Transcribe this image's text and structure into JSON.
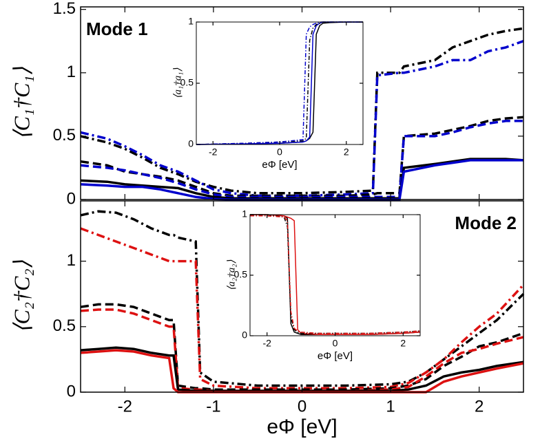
{
  "chart_data": [
    {
      "type": "line",
      "annotation": "Mode 1",
      "ylabel": "⟨C₁†C₁⟩",
      "x": [
        -2.5,
        -2.2,
        -2.0,
        -1.8,
        -1.6,
        -1.4,
        -1.2,
        -1.0,
        -0.8,
        -0.5,
        0,
        0.5,
        0.8,
        0.85,
        1.1,
        1.15,
        1.5,
        1.7,
        1.9,
        2.1,
        2.3,
        2.5
      ],
      "xlim": [
        -2.5,
        2.5
      ],
      "xticks": [
        -2,
        -1,
        0,
        1,
        2
      ],
      "show_xtick_labels": false,
      "ylim": [
        0,
        1.52
      ],
      "yticks": [
        0,
        0.5,
        1,
        1.5
      ],
      "series": [
        {
          "color": "#000000",
          "dash": "dashdot",
          "values": [
            0.5,
            0.45,
            0.4,
            0.33,
            0.25,
            0.2,
            0.14,
            0.1,
            0.07,
            0.05,
            0.05,
            0.06,
            0.07,
            1.0,
            1.0,
            1.05,
            1.1,
            1.2,
            1.25,
            1.3,
            1.33,
            1.35
          ]
        },
        {
          "color": "#0000cc",
          "dash": "dashdot",
          "values": [
            0.53,
            0.48,
            0.42,
            0.35,
            0.27,
            0.22,
            0.15,
            0.08,
            0.05,
            0.03,
            0.03,
            0.04,
            0.05,
            0.98,
            1.0,
            1.0,
            1.05,
            1.1,
            1.1,
            1.17,
            1.2,
            1.25
          ]
        },
        {
          "color": "#000000",
          "dash": "dashed",
          "values": [
            0.3,
            0.27,
            0.22,
            0.2,
            0.18,
            0.15,
            0.1,
            0.05,
            0.03,
            0.03,
            0.03,
            0.03,
            0.04,
            0.05,
            0.05,
            0.5,
            0.52,
            0.55,
            0.58,
            0.62,
            0.64,
            0.65
          ]
        },
        {
          "color": "#0000cc",
          "dash": "dashed",
          "values": [
            0.27,
            0.25,
            0.23,
            0.2,
            0.17,
            0.13,
            0.08,
            0.04,
            0.02,
            0.02,
            0.02,
            0.02,
            0.02,
            0.02,
            0.02,
            0.5,
            0.5,
            0.53,
            0.57,
            0.6,
            0.62,
            0.62
          ]
        },
        {
          "color": "#000000",
          "dash": "solid",
          "values": [
            0.15,
            0.14,
            0.12,
            0.11,
            0.1,
            0.09,
            0.05,
            0.02,
            0.01,
            0.01,
            0.01,
            0.01,
            0.01,
            0.01,
            0.01,
            0.25,
            0.28,
            0.3,
            0.32,
            0.32,
            0.32,
            0.31
          ]
        },
        {
          "color": "#0000cc",
          "dash": "solid",
          "values": [
            0.12,
            0.11,
            0.1,
            0.1,
            0.08,
            0.05,
            0.02,
            0.005,
            0,
            0,
            0,
            0,
            0,
            0,
            0,
            0.22,
            0.27,
            0.29,
            0.31,
            0.31,
            0.31,
            0.31
          ]
        }
      ]
    },
    {
      "type": "line",
      "xlabel": "eΦ [eV]",
      "ylabel": "⟨a₁†a₁⟩",
      "x": [
        -2.5,
        -1,
        0,
        0.7,
        0.8,
        0.9,
        1.0,
        1.1,
        1.2,
        1.3,
        1.5,
        2,
        2.5
      ],
      "xlim": [
        -2.5,
        2.5
      ],
      "xticks": [
        -2,
        0,
        2
      ],
      "ylim": [
        0,
        1
      ],
      "yticks": [
        0,
        0.5,
        1
      ],
      "series": [
        {
          "color": "#000000",
          "dash": "solid",
          "values": [
            0,
            0.005,
            0.01,
            0.02,
            0.03,
            0.05,
            0.1,
            0.9,
            0.97,
            0.99,
            0.995,
            1,
            1
          ]
        },
        {
          "color": "#0000cc",
          "dash": "solid",
          "values": [
            0,
            0.005,
            0.01,
            0.02,
            0.03,
            0.06,
            0.9,
            0.97,
            0.99,
            1,
            1,
            1,
            1
          ]
        },
        {
          "color": "#000000",
          "dash": "dashdot",
          "values": [
            0,
            0.01,
            0.02,
            0.03,
            0.05,
            0.85,
            0.95,
            0.98,
            0.99,
            1,
            1,
            1,
            1
          ]
        },
        {
          "color": "#0000cc",
          "dash": "dashdot",
          "values": [
            0,
            0.01,
            0.02,
            0.04,
            0.9,
            0.96,
            0.98,
            0.99,
            1,
            1,
            1,
            1,
            1
          ]
        }
      ]
    },
    {
      "type": "line",
      "annotation": "Mode 2",
      "ylabel": "⟨C₂†C₂⟩",
      "xlabel": "eΦ [eV]",
      "x": [
        -2.5,
        -2.3,
        -2.1,
        -1.9,
        -1.7,
        -1.5,
        -1.45,
        -1.4,
        -1.2,
        -1.15,
        -1.0,
        -0.5,
        0,
        0.5,
        1.0,
        1.2,
        1.4,
        1.6,
        1.8,
        2.0,
        2.2,
        2.5
      ],
      "xlim": [
        -2.5,
        2.5
      ],
      "xticks": [
        -2,
        -1,
        0,
        1,
        2
      ],
      "show_xtick_labels": true,
      "ylim": [
        0,
        1.46
      ],
      "yticks": [
        0,
        0.5,
        1
      ],
      "series": [
        {
          "color": "#000000",
          "dash": "dashdot",
          "values": [
            1.35,
            1.38,
            1.37,
            1.32,
            1.25,
            1.2,
            1.2,
            1.18,
            1.15,
            0.15,
            0.08,
            0.05,
            0.05,
            0.05,
            0.06,
            0.08,
            0.15,
            0.25,
            0.35,
            0.45,
            0.55,
            0.75
          ]
        },
        {
          "color": "#dd1111",
          "dash": "dashdot",
          "values": [
            1.25,
            1.2,
            1.15,
            1.1,
            1.05,
            1.0,
            1.0,
            1.0,
            1.0,
            0.1,
            0.05,
            0.03,
            0.03,
            0.03,
            0.04,
            0.07,
            0.15,
            0.25,
            0.38,
            0.5,
            0.6,
            0.82
          ]
        },
        {
          "color": "#000000",
          "dash": "dashed",
          "values": [
            0.65,
            0.67,
            0.67,
            0.65,
            0.6,
            0.55,
            0.55,
            0.05,
            0.03,
            0.03,
            0.02,
            0.02,
            0.02,
            0.02,
            0.03,
            0.05,
            0.1,
            0.2,
            0.27,
            0.35,
            0.38,
            0.45
          ]
        },
        {
          "color": "#dd1111",
          "dash": "dashed",
          "values": [
            0.62,
            0.63,
            0.63,
            0.6,
            0.55,
            0.5,
            0.5,
            0.03,
            0.02,
            0.02,
            0.01,
            0.01,
            0.01,
            0.01,
            0.02,
            0.04,
            0.12,
            0.22,
            0.3,
            0.33,
            0.37,
            0.42
          ]
        },
        {
          "color": "#000000",
          "dash": "solid",
          "values": [
            0.32,
            0.33,
            0.34,
            0.33,
            0.3,
            0.28,
            0.28,
            0.02,
            0.01,
            0.01,
            0.01,
            0.01,
            0.01,
            0.01,
            0.01,
            0.02,
            0.05,
            0.12,
            0.15,
            0.17,
            0.2,
            0.23
          ]
        },
        {
          "color": "#dd1111",
          "dash": "solid",
          "values": [
            0.3,
            0.31,
            0.32,
            0.31,
            0.28,
            0.26,
            0.03,
            0,
            0,
            0,
            0,
            0,
            0,
            0,
            0,
            0,
            0,
            0.08,
            0.12,
            0.15,
            0.18,
            0.22
          ]
        }
      ]
    },
    {
      "type": "line",
      "xlabel": "eΦ [eV]",
      "ylabel": "⟨a₂†a₂⟩",
      "x": [
        -2.5,
        -2,
        -1.5,
        -1.4,
        -1.3,
        -1.2,
        -1.1,
        -1.0,
        -0.5,
        0,
        1,
        2,
        2.5
      ],
      "xlim": [
        -2.5,
        2.5
      ],
      "xticks": [
        -2,
        0,
        2
      ],
      "ylim": [
        0,
        1
      ],
      "yticks": [
        0,
        0.5,
        1
      ],
      "series": [
        {
          "color": "#000000",
          "dash": "solid",
          "values": [
            1,
            1,
            0.99,
            0.97,
            0.1,
            0.03,
            0.02,
            0.01,
            0.01,
            0.01,
            0.01,
            0.02,
            0.03
          ]
        },
        {
          "color": "#dd1111",
          "dash": "solid",
          "values": [
            1,
            1,
            0.99,
            0.98,
            0.97,
            0.95,
            0.05,
            0.02,
            0.01,
            0.01,
            0.01,
            0.02,
            0.03
          ]
        },
        {
          "color": "#000000",
          "dash": "dashdot",
          "values": [
            1,
            1,
            0.98,
            0.9,
            0.15,
            0.05,
            0.03,
            0.02,
            0.02,
            0.02,
            0.02,
            0.03,
            0.04
          ]
        },
        {
          "color": "#dd1111",
          "dash": "dashdot",
          "values": [
            0.99,
            0.99,
            0.98,
            0.95,
            0.2,
            0.06,
            0.04,
            0.03,
            0.02,
            0.02,
            0.02,
            0.03,
            0.04
          ]
        }
      ]
    }
  ]
}
